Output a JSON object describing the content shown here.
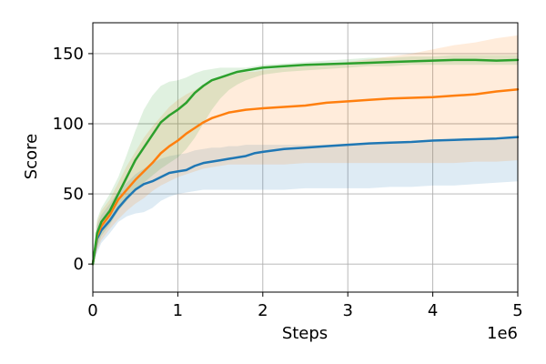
{
  "chart_data": {
    "type": "line",
    "xlabel": "Steps",
    "ylabel": "Score",
    "x_offset_label": "1e6",
    "xlim": [
      0,
      5
    ],
    "ylim": [
      -20,
      172
    ],
    "xticks": [
      0,
      1,
      2,
      3,
      4,
      5
    ],
    "yticks": [
      0,
      50,
      100,
      150
    ],
    "grid": true,
    "legend": "none",
    "x": [
      0,
      0.05,
      0.1,
      0.2,
      0.3,
      0.4,
      0.5,
      0.6,
      0.7,
      0.8,
      0.9,
      1.0,
      1.1,
      1.2,
      1.3,
      1.4,
      1.5,
      1.6,
      1.7,
      1.8,
      1.9,
      2.0,
      2.25,
      2.5,
      2.75,
      3.0,
      3.25,
      3.5,
      3.75,
      4.0,
      4.25,
      4.5,
      4.75,
      5.0
    ],
    "series": [
      {
        "color": "#1f77b4",
        "values": [
          0,
          18,
          24,
          31,
          40,
          47,
          53,
          57,
          59,
          62,
          65,
          66,
          67,
          70,
          72,
          73,
          74,
          75,
          76,
          77,
          79,
          80,
          82,
          83,
          84,
          85,
          86,
          86.5,
          87,
          88,
          88.5,
          89,
          89.5,
          90.5
        ],
        "lower": [
          0,
          8,
          15,
          22,
          30,
          34,
          36,
          37,
          40,
          45,
          48,
          50,
          51,
          52,
          53,
          53,
          53,
          53,
          53,
          53,
          53,
          53,
          53,
          54,
          54,
          54,
          54,
          55,
          55,
          56,
          56,
          57,
          58,
          59
        ],
        "upper": [
          0,
          28,
          35,
          43,
          52,
          58,
          64,
          68,
          72,
          75,
          77,
          78,
          79,
          81,
          82,
          83,
          83,
          84,
          84,
          85,
          85,
          85,
          85,
          85,
          85,
          86,
          86,
          86,
          86,
          87,
          88,
          88,
          89,
          90
        ]
      },
      {
        "color": "#ff7f0e",
        "values": [
          0,
          20,
          27,
          35,
          46,
          53,
          60,
          66,
          72,
          79,
          84,
          88,
          93,
          97,
          101,
          104,
          106,
          108,
          109,
          110,
          110.5,
          111,
          112,
          113,
          115,
          116,
          117,
          118,
          118.5,
          119,
          120,
          121,
          123,
          124.5
        ],
        "lower": [
          0,
          10,
          17,
          25,
          32,
          38,
          43,
          47,
          52,
          56,
          59,
          62,
          64,
          66,
          68,
          69,
          70,
          71,
          71,
          71,
          71,
          71,
          71,
          72,
          72,
          72,
          72,
          72,
          72,
          72,
          72,
          73,
          73,
          74
        ],
        "upper": [
          0,
          30,
          38,
          46,
          58,
          70,
          80,
          90,
          98,
          105,
          112,
          117,
          121,
          124,
          128,
          131,
          133,
          134,
          136,
          137,
          137,
          138,
          140,
          141,
          142,
          144,
          146,
          148,
          150,
          153,
          156,
          158,
          161,
          163
        ]
      },
      {
        "color": "#2ca02c",
        "values": [
          0,
          22,
          30,
          38,
          50,
          62,
          74,
          83,
          92,
          101,
          106,
          110,
          115,
          122,
          127,
          131,
          133,
          135,
          137,
          138,
          139,
          140,
          141,
          142,
          142.5,
          143,
          143.5,
          144,
          144.5,
          145,
          145.5,
          145.5,
          145,
          145.5
        ],
        "lower": [
          0,
          12,
          20,
          28,
          38,
          45,
          52,
          58,
          63,
          68,
          72,
          76,
          82,
          90,
          100,
          110,
          118,
          124,
          128,
          131,
          133,
          135,
          137,
          138,
          139,
          140,
          141,
          141,
          142,
          142,
          142,
          142,
          142,
          142
        ],
        "upper": [
          0,
          32,
          40,
          50,
          62,
          78,
          95,
          110,
          120,
          127,
          130,
          131,
          133,
          136,
          138,
          139,
          140,
          140,
          140,
          140,
          141,
          142,
          143,
          144,
          145,
          146,
          147,
          147,
          148,
          148,
          149,
          149,
          149,
          149
        ]
      }
    ]
  }
}
